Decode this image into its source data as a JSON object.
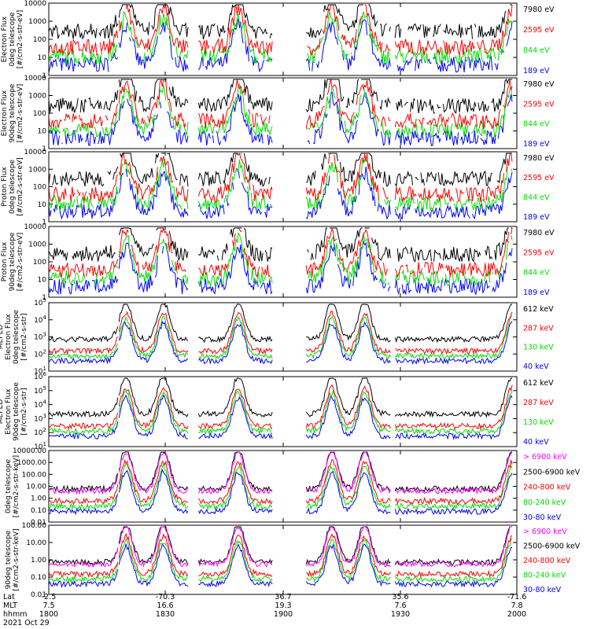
{
  "chart_data": [
    {
      "type": "line",
      "ylabel": [
        "Electron Flux",
        "0deg telescope",
        "[#/cm2-s-str-eV]"
      ],
      "log": true,
      "yticks": [
        "10000",
        "1000",
        "100",
        "10",
        "1"
      ],
      "legend": [
        {
          "label": "7980 eV",
          "color": "#000000"
        },
        {
          "label": "2595 eV",
          "color": "#ff0000"
        },
        {
          "label": "844 eV",
          "color": "#00dd00"
        },
        {
          "label": "189 eV",
          "color": "#0000ff"
        }
      ]
    },
    {
      "type": "line",
      "ylabel": [
        "Electron Flux",
        "90deg telescope",
        "[#/cm2-s-str-eV]"
      ],
      "log": true,
      "yticks": [
        "10000",
        "1000",
        "100",
        "10",
        "1"
      ],
      "legend": [
        {
          "label": "7980 eV",
          "color": "#000000"
        },
        {
          "label": "2595 eV",
          "color": "#ff0000"
        },
        {
          "label": "844 eV",
          "color": "#00dd00"
        },
        {
          "label": "189 eV",
          "color": "#0000ff"
        }
      ]
    },
    {
      "type": "line",
      "ylabel": [
        "Proton Flux",
        "0deg telescope",
        "[#/cm2-s-str-eV]"
      ],
      "log": true,
      "yticks": [
        "10000",
        "1000",
        "100",
        "10",
        "1"
      ],
      "legend": [
        {
          "label": "7980 eV",
          "color": "#000000"
        },
        {
          "label": "2595 eV",
          "color": "#ff0000"
        },
        {
          "label": "844 eV",
          "color": "#00dd00"
        },
        {
          "label": "189 eV",
          "color": "#0000ff"
        }
      ]
    },
    {
      "type": "line",
      "ylabel": [
        "Proton Flux",
        "90deg telescope",
        "[#/cm2-s-str-eV]"
      ],
      "log": true,
      "yticks": [
        "10000",
        "1000",
        "100",
        "10",
        "1"
      ],
      "legend": [
        {
          "label": "7980 eV",
          "color": "#000000"
        },
        {
          "label": "2595 eV",
          "color": "#ff0000"
        },
        {
          "label": "844 eV",
          "color": "#00dd00"
        },
        {
          "label": "189 eV",
          "color": "#0000ff"
        }
      ]
    },
    {
      "type": "line",
      "ylabel": [
        "MEPED",
        "Electron Flux",
        "0deg telescope",
        "[#/cm2-s-str]"
      ],
      "log": true,
      "yticks": [
        "10^5",
        "10^4",
        "10^3",
        "10^2",
        "10^1"
      ],
      "legend": [
        {
          "label": "612 keV",
          "color": "#000000"
        },
        {
          "label": "287 keV",
          "color": "#ff0000"
        },
        {
          "label": "130 keV",
          "color": "#00dd00"
        },
        {
          "label": "40 keV",
          "color": "#0000ff"
        }
      ]
    },
    {
      "type": "line",
      "ylabel": [
        "MEPED",
        "Electron Flux",
        "90deg telescope",
        "[#/cm2-s-str]"
      ],
      "log": true,
      "yticks": [
        "10^6",
        "10^5",
        "10^4",
        "10^3",
        "10^2",
        "10^1"
      ],
      "legend": [
        {
          "label": "612 keV",
          "color": "#000000"
        },
        {
          "label": "287 keV",
          "color": "#ff0000"
        },
        {
          "label": "130 keV",
          "color": "#00dd00"
        },
        {
          "label": "40 keV",
          "color": "#0000ff"
        }
      ]
    },
    {
      "type": "line",
      "ylabel": [
        "0deg telescope",
        "[#/cm2-s-str-keV]"
      ],
      "log": true,
      "yticks": [
        "10000.00",
        "1000.00",
        "100.00",
        "10.00",
        "1.00",
        "0.10",
        "0.01"
      ],
      "legend": [
        {
          "label": "> 6900 keV",
          "color": "#ff00ff"
        },
        {
          "label": "2500-6900 keV",
          "color": "#000000"
        },
        {
          "label": "240-800 keV",
          "color": "#ff0000"
        },
        {
          "label": "80-240 keV",
          "color": "#00dd00"
        },
        {
          "label": "30-80 keV",
          "color": "#0000ff"
        }
      ]
    },
    {
      "type": "line",
      "ylabel": [
        "90deg telescope",
        "[#/cm2-s-str-keV]"
      ],
      "log": true,
      "yticks": [
        "100.00",
        "10.00",
        "1.00",
        "0.10",
        "0.01"
      ],
      "legend": [
        {
          "label": "> 6900 keV",
          "color": "#ff00ff"
        },
        {
          "label": "2500-6900 keV",
          "color": "#000000"
        },
        {
          "label": "240-800 keV",
          "color": "#ff0000"
        },
        {
          "label": "80-240 keV",
          "color": "#00dd00"
        },
        {
          "label": "30-80 keV",
          "color": "#0000ff"
        }
      ]
    }
  ],
  "x_axis": {
    "row_labels": [
      "Lat",
      "MLT",
      "hhmm"
    ],
    "date": "2021 Oct 29",
    "columns": [
      {
        "lat": "-2.5",
        "mlt": "7.5",
        "hhmm": "1800"
      },
      {
        "lat": "-70.3",
        "mlt": "16.6",
        "hhmm": "1830"
      },
      {
        "lat": "36.7",
        "mlt": "19.3",
        "hhmm": "1900"
      },
      {
        "lat": "35.6",
        "mlt": "7.6",
        "hhmm": "1930"
      },
      {
        "lat": "-71.6",
        "mlt": "7.8",
        "hhmm": "2000"
      }
    ]
  }
}
